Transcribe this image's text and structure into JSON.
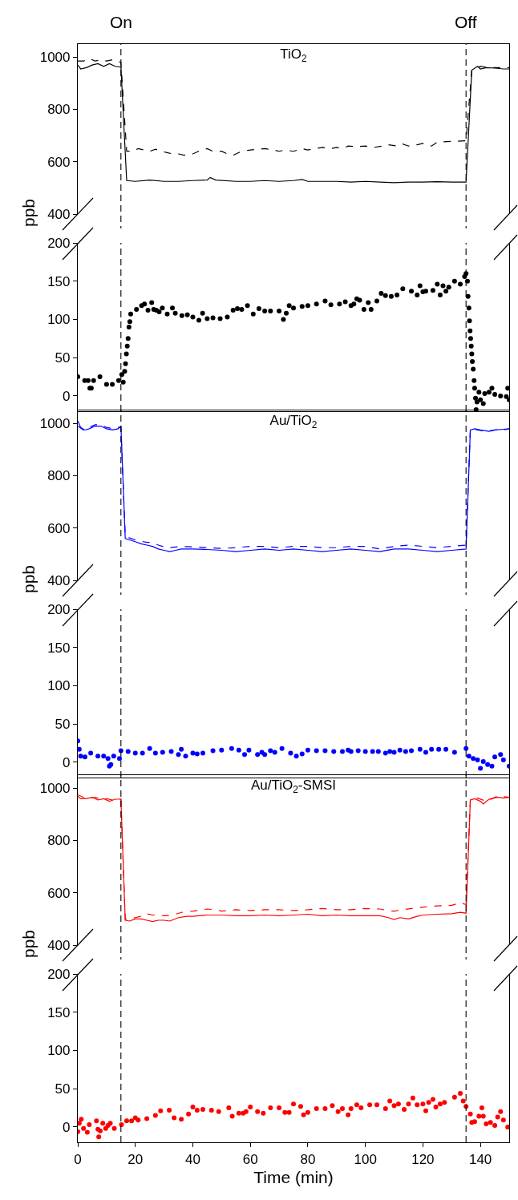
{
  "chart_data": [
    {
      "type": "line",
      "title": "TiO$_{2}$",
      "ylabel": "ppb",
      "xlim": [
        0,
        150
      ],
      "ylim": [
        400,
        1050
      ],
      "yticks": [
        400,
        600,
        800,
        1000
      ],
      "tick_labels": "y",
      "marker": "none",
      "ref_lines": [
        {
          "axis": "x",
          "value": 15,
          "label": "On",
          "color": "#000000",
          "line_style": "dashed"
        },
        {
          "axis": "x",
          "value": 135,
          "label": "Off",
          "color": "#000000",
          "line_style": "dashed"
        }
      ],
      "series": [
        {
          "color": "#000000",
          "line_style": "solid",
          "x": [
            0,
            1,
            3,
            5,
            7,
            9,
            11,
            13,
            15,
            17,
            20,
            25,
            30,
            35,
            40,
            45,
            46,
            48,
            55,
            60,
            65,
            70,
            75,
            78,
            80,
            85,
            90,
            95,
            100,
            105,
            110,
            115,
            120,
            125,
            130,
            135,
            137,
            139,
            140,
            142,
            145,
            148,
            150
          ],
          "values": [
            970,
            955,
            960,
            970,
            975,
            965,
            975,
            965,
            962,
            528,
            525,
            530,
            525,
            525,
            528,
            530,
            540,
            530,
            525,
            525,
            528,
            525,
            528,
            532,
            525,
            525,
            525,
            522,
            525,
            522,
            520,
            522,
            522,
            524,
            522,
            522,
            950,
            965,
            955,
            960,
            958,
            955,
            955
          ]
        },
        {
          "color": "#000000",
          "line_style": "dashed",
          "x": [
            0,
            2,
            4,
            6,
            8,
            10,
            12,
            14,
            15,
            17,
            19,
            21,
            23,
            25,
            27,
            29,
            31,
            33,
            35,
            37,
            40,
            43,
            45,
            47,
            50,
            52,
            54,
            57,
            60,
            65,
            68,
            70,
            72,
            75,
            78,
            80,
            85,
            88,
            90,
            92,
            94,
            97,
            100,
            103,
            106,
            108,
            111,
            113,
            115,
            118,
            120,
            123,
            125,
            130,
            135,
            137,
            140,
            143,
            147,
            150
          ],
          "values": [
            985,
            985,
            995,
            985,
            990,
            985,
            990,
            985,
            980,
            640,
            640,
            650,
            645,
            640,
            648,
            640,
            635,
            630,
            630,
            625,
            630,
            645,
            650,
            640,
            640,
            630,
            625,
            640,
            645,
            650,
            645,
            640,
            645,
            640,
            650,
            645,
            655,
            650,
            655,
            650,
            660,
            658,
            660,
            655,
            660,
            665,
            660,
            668,
            660,
            665,
            670,
            660,
            675,
            678,
            680,
            950,
            965,
            960,
            960,
            960
          ]
        }
      ]
    },
    {
      "type": "scatter",
      "xlim": [
        0,
        150
      ],
      "ylim": [
        -20,
        200
      ],
      "yticks": [
        0,
        50,
        100,
        150,
        200
      ],
      "tick_labels": "y",
      "marker": "circle",
      "ref_lines": [
        {
          "axis": "x",
          "value": 15,
          "color": "#000000",
          "line_style": "dashed"
        },
        {
          "axis": "x",
          "value": 135,
          "color": "#000000",
          "line_style": "dashed"
        }
      ],
      "series": [
        {
          "color": "#000000",
          "x": [
            0,
            2.4,
            3.6,
            4.2,
            4.7,
            5.5,
            7.7,
            10,
            12,
            14.2,
            15.3,
            15.8,
            16.3,
            16.6,
            16.9,
            17.2,
            17.5,
            17.8,
            18.1,
            18.4,
            20.4,
            22.2,
            23.2,
            24.4,
            25.7,
            26.4,
            27.3,
            28.3,
            29.4,
            31.1,
            32.9,
            33.9,
            36.2,
            38.1,
            40,
            42.1,
            43.4,
            45,
            47,
            49.5,
            52,
            54,
            55.5,
            57,
            59,
            61,
            63,
            65,
            67,
            70,
            71.5,
            72.5,
            73.5,
            75,
            78,
            80,
            83,
            86,
            88,
            91,
            93,
            95,
            96,
            97,
            98,
            99.5,
            101,
            102,
            104,
            105.5,
            107,
            109,
            111,
            113,
            116,
            118,
            119,
            120,
            121,
            123.5,
            125,
            126,
            127,
            128,
            129,
            131,
            133,
            134.5,
            135,
            135.5,
            135.7,
            136,
            136.2,
            136.4,
            136.6,
            136.8,
            137,
            137.2,
            137.5,
            137.8,
            138,
            138.3,
            138.5,
            138.8,
            139.5,
            140,
            141,
            141.5,
            143,
            144,
            145,
            147,
            149,
            149.5,
            150
          ],
          "values": [
            25,
            20,
            20,
            10,
            10,
            20,
            25,
            15,
            15,
            20,
            28,
            18,
            32,
            42,
            55,
            65,
            75,
            90,
            97,
            107,
            113,
            118,
            120,
            112,
            122,
            113,
            112,
            110,
            115,
            107,
            115,
            108,
            105,
            106,
            103,
            99,
            108,
            101,
            102,
            101,
            103,
            112,
            114,
            113,
            118,
            107,
            114,
            111,
            111,
            111,
            100,
            108,
            118,
            115,
            117,
            118,
            120,
            124,
            119,
            120,
            123,
            118,
            120,
            127,
            125,
            113,
            122,
            113,
            124,
            134,
            131,
            130,
            132,
            140,
            137,
            132,
            144,
            136,
            137,
            138,
            146,
            132,
            144,
            137,
            142,
            150,
            146,
            156,
            160,
            150,
            130,
            115,
            98,
            85,
            75,
            65,
            55,
            45,
            35,
            20,
            10,
            -3,
            -18,
            -8,
            5,
            -5,
            -10,
            3,
            5,
            10,
            2,
            0,
            -1,
            10,
            -5
          ]
        }
      ]
    },
    {
      "type": "line",
      "title": "Au/TiO$_{2}$",
      "ylabel": "ppb",
      "xlim": [
        0,
        150
      ],
      "ylim": [
        400,
        1050
      ],
      "yticks": [
        400,
        600,
        800,
        1000
      ],
      "tick_labels": "y",
      "marker": "none",
      "ref_lines": [
        {
          "axis": "x",
          "value": 15,
          "color": "#000000",
          "line_style": "dashed"
        },
        {
          "axis": "x",
          "value": 135,
          "color": "#000000",
          "line_style": "dashed"
        }
      ],
      "series": [
        {
          "color": "#0000ff",
          "line_style": "solid",
          "x": [
            0,
            1,
            2.5,
            4,
            6,
            8,
            10,
            12,
            14,
            15,
            16.5,
            18,
            20,
            22,
            24,
            26,
            28,
            30,
            32,
            34,
            36,
            40,
            45,
            50,
            55,
            60,
            65,
            70,
            75,
            80,
            85,
            90,
            95,
            100,
            105,
            110,
            115,
            120,
            125,
            130,
            135,
            136.5,
            138,
            140,
            143,
            145,
            148,
            150
          ],
          "values": [
            1010,
            985,
            975,
            980,
            990,
            990,
            980,
            975,
            980,
            990,
            560,
            555,
            548,
            540,
            535,
            530,
            520,
            515,
            510,
            515,
            520,
            520,
            518,
            515,
            510,
            515,
            520,
            515,
            520,
            515,
            510,
            515,
            520,
            515,
            510,
            520,
            520,
            515,
            510,
            515,
            520,
            975,
            980,
            975,
            970,
            975,
            978,
            980
          ]
        },
        {
          "color": "#0000ff",
          "line_style": "dashed",
          "x": [
            0,
            2,
            4,
            6,
            8,
            10,
            12,
            14,
            15,
            16.5,
            18,
            20,
            22,
            24,
            26,
            28,
            30,
            32,
            36,
            40,
            45,
            50,
            55,
            60,
            65,
            70,
            75,
            80,
            85,
            90,
            95,
            100,
            105,
            110,
            115,
            120,
            125,
            130,
            135,
            136.5,
            139,
            142,
            145,
            148,
            150
          ],
          "values": [
            990,
            975,
            985,
            995,
            995,
            985,
            980,
            985,
            985,
            570,
            562,
            555,
            550,
            545,
            545,
            535,
            528,
            525,
            530,
            528,
            525,
            522,
            525,
            530,
            530,
            525,
            530,
            530,
            525,
            525,
            530,
            530,
            520,
            530,
            535,
            530,
            525,
            530,
            535,
            980,
            975,
            970,
            975,
            975,
            980
          ]
        }
      ]
    },
    {
      "type": "scatter",
      "xlim": [
        0,
        150
      ],
      "ylim": [
        -20,
        200
      ],
      "yticks": [
        0,
        50,
        100,
        150,
        200
      ],
      "tick_labels": "y",
      "marker": "circle",
      "ref_lines": [
        {
          "axis": "x",
          "value": 15,
          "color": "#000000",
          "line_style": "dashed"
        },
        {
          "axis": "x",
          "value": 135,
          "color": "#000000",
          "line_style": "dashed"
        }
      ],
      "series": [
        {
          "color": "#0000ff",
          "x": [
            0,
            0.5,
            1,
            2.5,
            4.5,
            7,
            9,
            10.5,
            11,
            11.5,
            12.5,
            14.5,
            15,
            17.5,
            20,
            22.5,
            25,
            27,
            29.5,
            32.5,
            35,
            36,
            37.5,
            40,
            41.5,
            43.5,
            47,
            50,
            53.5,
            56,
            58,
            59.5,
            62.5,
            64,
            65,
            67,
            68.5,
            71,
            74,
            76,
            78,
            80,
            83,
            86,
            89,
            92,
            94,
            95,
            97.5,
            100,
            102.5,
            104.5,
            107,
            108.5,
            110,
            112,
            114,
            116,
            119,
            121,
            123,
            125.5,
            128,
            131,
            135,
            136,
            137.5,
            139,
            140,
            141,
            142.5,
            144,
            145,
            147,
            148,
            150
          ],
          "values": [
            28,
            17,
            8,
            7,
            12,
            8,
            8,
            5,
            -5,
            -3,
            8,
            5,
            15,
            14,
            12,
            12,
            18,
            12,
            13,
            14,
            10,
            17,
            8,
            12,
            11,
            12,
            15,
            16,
            18,
            16,
            10,
            16,
            10,
            13,
            10,
            15,
            13,
            18,
            12,
            8,
            11,
            16,
            15,
            15,
            14,
            14,
            16,
            14,
            15,
            14,
            14,
            14,
            12,
            14,
            13,
            16,
            14,
            15,
            17,
            13,
            17,
            17,
            17,
            13,
            18,
            8,
            5,
            3,
            -8,
            1,
            -3,
            -5,
            7,
            10,
            3,
            -5
          ]
        }
      ]
    },
    {
      "type": "line",
      "title": "Au/TiO$_{2}$-SMSI",
      "ylabel": "ppb",
      "xlim": [
        0,
        150
      ],
      "ylim": [
        400,
        1050
      ],
      "yticks": [
        400,
        600,
        800,
        1000
      ],
      "tick_labels": "y",
      "marker": "none",
      "ref_lines": [
        {
          "axis": "x",
          "value": 15,
          "color": "#000000",
          "line_style": "dashed"
        },
        {
          "axis": "x",
          "value": 135,
          "color": "#000000",
          "line_style": "dashed"
        }
      ],
      "series": [
        {
          "color": "#ff0000",
          "line_style": "solid",
          "x": [
            0,
            1,
            3,
            5,
            7,
            9,
            11,
            13,
            15,
            16.5,
            18,
            20,
            22,
            24,
            26,
            28,
            30,
            32,
            35,
            38,
            40,
            45,
            50,
            55,
            60,
            65,
            70,
            75,
            80,
            85,
            90,
            95,
            100,
            105,
            108,
            110,
            112,
            115,
            118,
            120,
            125,
            130,
            133,
            135,
            136.5,
            138,
            140,
            141,
            143,
            146,
            148,
            150
          ],
          "values": [
            970,
            960,
            960,
            965,
            955,
            960,
            950,
            958,
            958,
            495,
            492,
            500,
            500,
            495,
            490,
            495,
            495,
            492,
            505,
            510,
            510,
            515,
            515,
            512,
            512,
            515,
            512,
            515,
            518,
            512,
            515,
            512,
            512,
            512,
            505,
            498,
            505,
            500,
            510,
            515,
            518,
            520,
            525,
            522,
            955,
            960,
            950,
            940,
            958,
            965,
            962,
            965
          ]
        },
        {
          "color": "#ff0000",
          "line_style": "dashed",
          "x": [
            0,
            2,
            4,
            6,
            8,
            10,
            12,
            14,
            15,
            16.5,
            18,
            20,
            22,
            24,
            26,
            30,
            33,
            36,
            40,
            45,
            48,
            50,
            55,
            60,
            65,
            70,
            75,
            80,
            85,
            90,
            95,
            100,
            105,
            108,
            110,
            113,
            116,
            120,
            125,
            130,
            133,
            135,
            136.5,
            139,
            142,
            144,
            146,
            148,
            150
          ],
          "values": [
            975,
            965,
            960,
            965,
            958,
            960,
            955,
            958,
            958,
            500,
            498,
            505,
            510,
            520,
            515,
            512,
            515,
            525,
            530,
            538,
            535,
            530,
            535,
            532,
            535,
            535,
            532,
            535,
            540,
            535,
            535,
            540,
            538,
            532,
            530,
            535,
            540,
            545,
            550,
            552,
            562,
            555,
            958,
            962,
            950,
            960,
            970,
            968,
            965
          ]
        }
      ]
    },
    {
      "type": "scatter",
      "xlabel": "Time (min)",
      "xlim": [
        0,
        150
      ],
      "xticks": [
        0,
        20,
        40,
        60,
        80,
        100,
        120,
        140
      ],
      "ylim": [
        -20,
        200
      ],
      "yticks": [
        0,
        50,
        100,
        150,
        200
      ],
      "marker": "circle",
      "ref_lines": [
        {
          "axis": "x",
          "value": 15,
          "color": "#000000",
          "line_style": "dashed"
        },
        {
          "axis": "x",
          "value": 135,
          "color": "#000000",
          "line_style": "dashed"
        }
      ],
      "series": [
        {
          "color": "#ff0000",
          "x": [
            0,
            0.5,
            1.2,
            2,
            3.3,
            4,
            6.5,
            7,
            7.3,
            7.8,
            8.7,
            9.7,
            10.5,
            11.3,
            12.7,
            15.2,
            17,
            18.7,
            20,
            21,
            24,
            27,
            28.8,
            31.8,
            33.5,
            36,
            38.5,
            40,
            41.5,
            43.5,
            46.5,
            49,
            52.5,
            53.7,
            56,
            57.5,
            58.5,
            60,
            62.5,
            64.5,
            67,
            70,
            72,
            73.5,
            75,
            77.5,
            78.5,
            80,
            83,
            86,
            88.5,
            90.5,
            92,
            94,
            95,
            97,
            98.5,
            101.5,
            104,
            107,
            108.5,
            110,
            111.5,
            113.5,
            115,
            116.5,
            118,
            120,
            121,
            122,
            123.5,
            124.5,
            126,
            127.5,
            131,
            133,
            134,
            135,
            136.5,
            137,
            138,
            139.5,
            140.5,
            141,
            142,
            143.5,
            145,
            146,
            147,
            148,
            149.5
          ],
          "values": [
            -6,
            5,
            10,
            -2,
            -7,
            3,
            8,
            -3,
            -13,
            -5,
            5,
            -2,
            2,
            5,
            -2,
            3,
            8,
            8,
            12,
            9,
            11,
            15,
            21,
            22,
            12,
            10,
            17,
            26,
            22,
            23,
            22,
            20,
            25,
            14,
            18,
            18,
            20,
            26,
            20,
            18,
            25,
            25,
            19,
            19,
            30,
            27,
            16,
            19,
            24,
            24,
            28,
            20,
            24,
            16,
            24,
            29,
            25,
            29,
            29,
            24,
            34,
            28,
            30,
            23,
            30,
            38,
            29,
            30,
            21,
            32,
            36,
            26,
            30,
            32,
            39,
            44,
            34,
            27,
            17,
            6,
            7,
            14,
            25,
            14,
            4,
            6,
            2,
            13,
            20,
            9,
            0
          ]
        }
      ]
    }
  ]
}
